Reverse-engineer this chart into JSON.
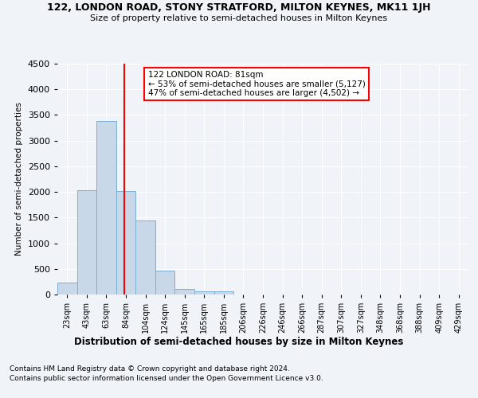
{
  "title": "122, LONDON ROAD, STONY STRATFORD, MILTON KEYNES, MK11 1JH",
  "subtitle": "Size of property relative to semi-detached houses in Milton Keynes",
  "xlabel": "Distribution of semi-detached houses by size in Milton Keynes",
  "ylabel": "Number of semi-detached properties",
  "footnote1": "Contains HM Land Registry data © Crown copyright and database right 2024.",
  "footnote2": "Contains public sector information licensed under the Open Government Licence v3.0.",
  "categories": [
    "23sqm",
    "43sqm",
    "63sqm",
    "84sqm",
    "104sqm",
    "124sqm",
    "145sqm",
    "165sqm",
    "185sqm",
    "206sqm",
    "226sqm",
    "246sqm",
    "266sqm",
    "287sqm",
    "307sqm",
    "327sqm",
    "348sqm",
    "368sqm",
    "388sqm",
    "409sqm",
    "429sqm"
  ],
  "values": [
    230,
    2030,
    3380,
    2020,
    1440,
    470,
    110,
    65,
    60,
    0,
    0,
    0,
    0,
    0,
    0,
    0,
    0,
    0,
    0,
    0,
    0
  ],
  "bar_color": "#c8d8e8",
  "bar_edge_color": "#7ab0d4",
  "vline_color": "red",
  "ylim": [
    0,
    4500
  ],
  "yticks": [
    0,
    500,
    1000,
    1500,
    2000,
    2500,
    3000,
    3500,
    4000,
    4500
  ],
  "property_size": "81sqm",
  "pct_smaller": 53,
  "n_smaller": 5127,
  "pct_larger": 47,
  "n_larger": 4502,
  "annotation_box_color": "white",
  "annotation_box_edge": "red",
  "background_color": "#f0f4f8",
  "grid_color": "white",
  "vline_pos": 2.9
}
